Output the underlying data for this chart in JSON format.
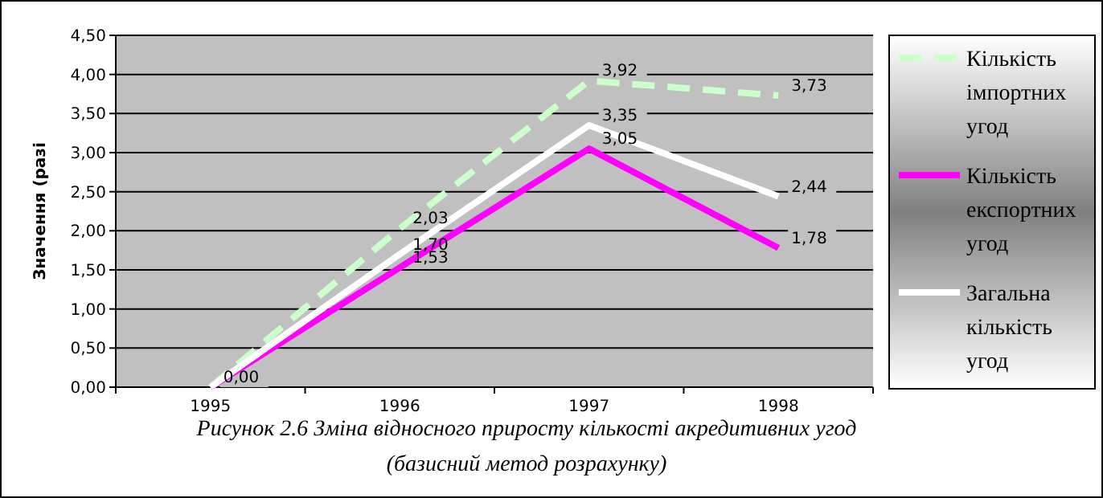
{
  "chart_data": {
    "type": "line",
    "ylabel": "Значення (разі",
    "categories": [
      "1995",
      "1996",
      "1997",
      "1998"
    ],
    "ylim": [
      0,
      4.5
    ],
    "yticks": [
      {
        "value": 0,
        "label": "0,00"
      },
      {
        "value": 0.5,
        "label": "0,50"
      },
      {
        "value": 1,
        "label": "1,00"
      },
      {
        "value": 1.5,
        "label": "1,50"
      },
      {
        "value": 2,
        "label": "2,00"
      },
      {
        "value": 2.5,
        "label": "2,50"
      },
      {
        "value": 3,
        "label": "3,00"
      },
      {
        "value": 3.5,
        "label": "3,50"
      },
      {
        "value": 4,
        "label": "4,00"
      },
      {
        "value": 4.5,
        "label": "4,50"
      }
    ],
    "grid": "y",
    "legend": "right",
    "marker": "none",
    "series": [
      {
        "name": "Кількість імпортних угод",
        "color": "#ccffcc",
        "line_style": "dashed",
        "values": [
          0,
          2.03,
          3.92,
          3.73
        ],
        "value_labels": [
          null,
          "2,03",
          "3,92",
          "3,73"
        ]
      },
      {
        "name": "Кількість експортних угод",
        "color": "#ff00ff",
        "line_style": "solid",
        "values": [
          0,
          1.53,
          3.05,
          1.78
        ],
        "value_labels": [
          "0,00",
          "1,53",
          "3,05",
          "1,78"
        ]
      },
      {
        "name": "Загальна кількість угод",
        "color": "#ffffff",
        "line_style": "solid",
        "values": [
          0,
          1.7,
          3.35,
          2.44
        ],
        "value_labels": [
          null,
          "1,70",
          "3,35",
          "2,44"
        ]
      }
    ],
    "annotations": [
      "Рисунок 2.6 Зміна відносного приросту кількості акредитивних угод",
      "(базисний метод розрахунку)"
    ]
  }
}
